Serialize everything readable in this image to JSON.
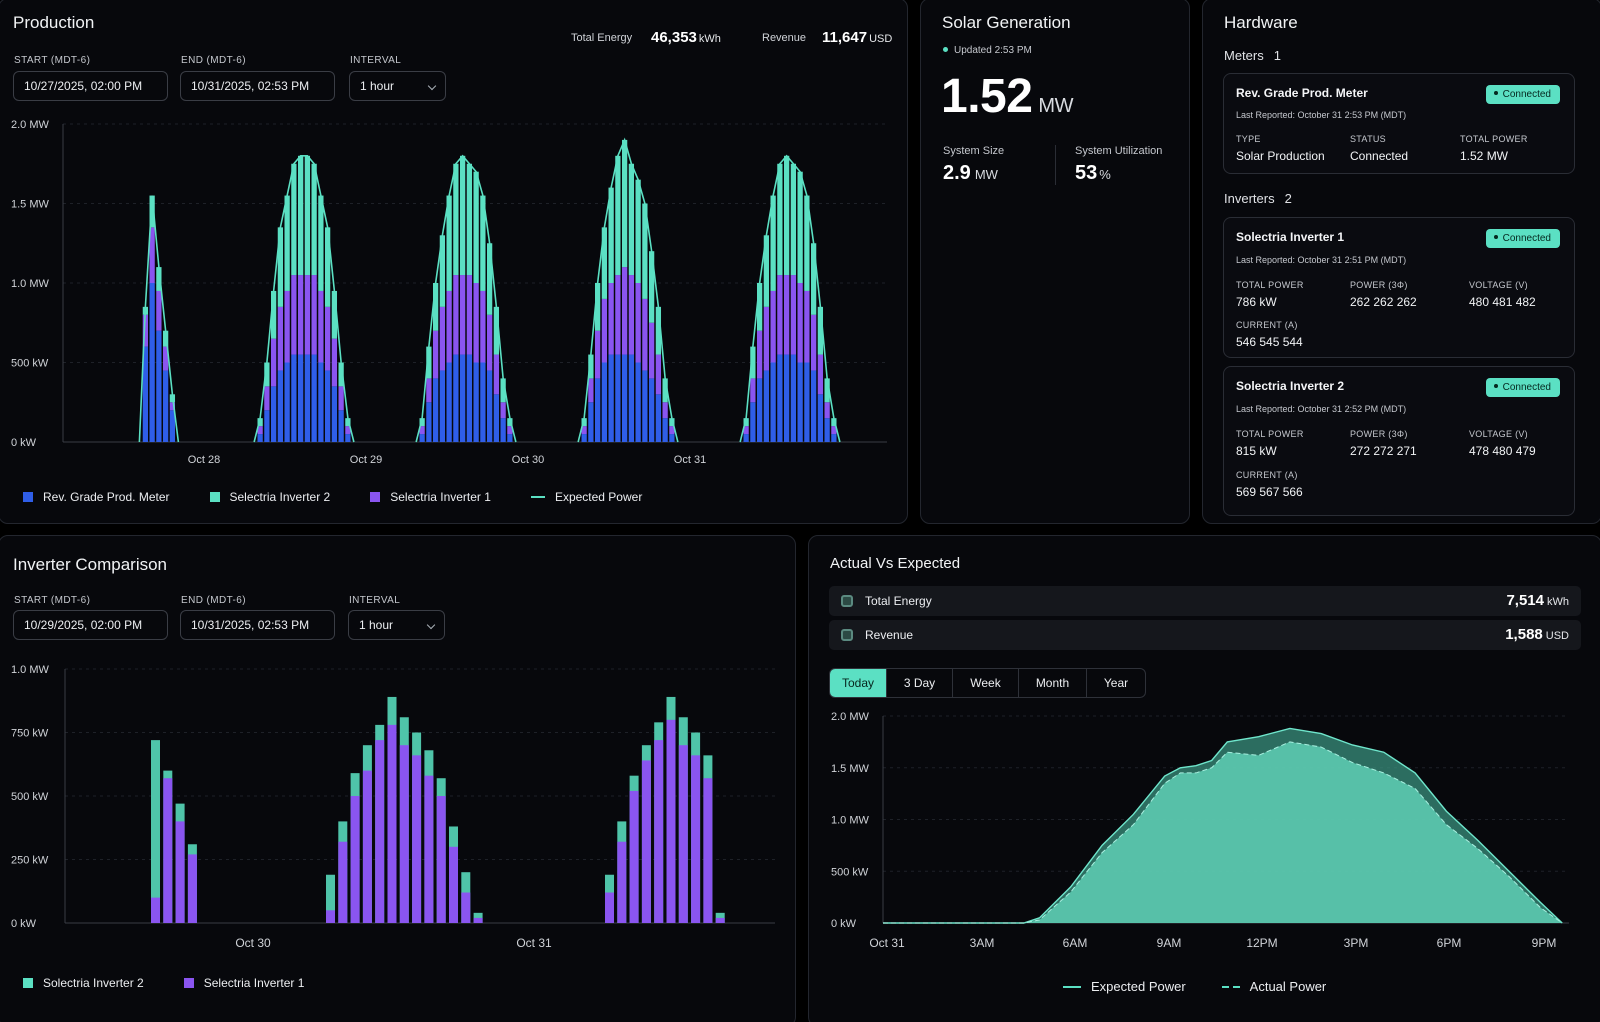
{
  "production": {
    "title": "Production",
    "start_label": "START (MDT-6)",
    "start_value": "10/27/2025, 02:00 PM",
    "end_label": "END (MDT-6)",
    "end_value": "10/31/2025, 02:53 PM",
    "interval_label": "INTERVAL",
    "interval_value": "1 hour",
    "total_energy_label": "Total Energy",
    "total_energy_value": "46,353",
    "total_energy_unit": "kWh",
    "revenue_label": "Revenue",
    "revenue_value": "11,647",
    "revenue_unit": "USD",
    "legend": [
      "Rev. Grade Prod. Meter",
      "Selectria Inverter 2",
      "Selectria Inverter 1",
      "Expected Power"
    ]
  },
  "solar": {
    "title": "Solar Generation",
    "updated": "Updated 2:53 PM",
    "power_value": "1.52",
    "power_unit": "MW",
    "size_label": "System Size",
    "size_value": "2.9",
    "size_unit": "MW",
    "util_label": "System Utilization",
    "util_value": "53",
    "util_unit": "%"
  },
  "hardware": {
    "title": "Hardware",
    "meters_label": "Meters",
    "meters_count": "1",
    "inverters_label": "Inverters",
    "inverters_count": "2",
    "meter": {
      "name": "Rev. Grade Prod. Meter",
      "status_badge": "Connected",
      "reported": "Last Reported: October 31 2:53 PM (MDT)",
      "type_label": "TYPE",
      "type_value": "Solar Production",
      "status_label": "STATUS",
      "status_value": "Connected",
      "power_label": "TOTAL POWER",
      "power_value": "1.52 MW"
    },
    "inverters": [
      {
        "name": "Solectria Inverter 1",
        "status_badge": "Connected",
        "reported": "Last Reported: October 31 2:51 PM (MDT)",
        "total_power_label": "TOTAL POWER",
        "total_power": "786 kW",
        "power3_label": "POWER (3Φ)",
        "power3": "262 262 262",
        "voltage_label": "VOLTAGE (V)",
        "voltage": "480 481 482",
        "current_label": "CURRENT (A)",
        "current": "546 545 544"
      },
      {
        "name": "Solectria Inverter 2",
        "status_badge": "Connected",
        "reported": "Last Reported: October 31 2:52 PM (MDT)",
        "total_power_label": "TOTAL POWER",
        "total_power": "815 kW",
        "power3_label": "POWER (3Φ)",
        "power3": "272 272 271",
        "voltage_label": "VOLTAGE (V)",
        "voltage": "478 480 479",
        "current_label": "CURRENT (A)",
        "current": "569 567 566"
      }
    ]
  },
  "comparison": {
    "title": "Inverter Comparison",
    "start_label": "START (MDT-6)",
    "start_value": "10/29/2025, 02:00 PM",
    "end_label": "END (MDT-6)",
    "end_value": "10/31/2025, 02:53 PM",
    "interval_label": "INTERVAL",
    "interval_value": "1 hour",
    "legend": [
      "Solectria Inverter 2",
      "Selectria Inverter 1"
    ]
  },
  "ave": {
    "title": "Actual Vs Expected",
    "energy_label": "Total Energy",
    "energy_value": "7,514",
    "energy_unit": "kWh",
    "revenue_label": "Revenue",
    "revenue_value": "1,588",
    "revenue_unit": "USD",
    "tabs": [
      "Today",
      "3 Day",
      "Week",
      "Month",
      "Year"
    ],
    "legend": [
      "Expected Power",
      "Actual Power"
    ]
  },
  "colors": {
    "meter": "#2f5ee8",
    "inverter2": "#5be0c3",
    "inverter1": "#8a55f0",
    "expected": "#5be0c3",
    "teal_fill": "#4fc4a9"
  },
  "chart_data": [
    {
      "type": "bar",
      "name": "production",
      "stacked": true,
      "y_ticks": [
        "2.0 MW",
        "1.5 MW",
        "1.0 MW",
        "500 kW",
        "0 kW"
      ],
      "ylim": [
        0,
        2.0
      ],
      "x_ticks": [
        "Oct 28",
        "Oct 29",
        "Oct 30",
        "Oct 31"
      ],
      "days": [
        {
          "start_hour": 13,
          "meter": [
            0.6,
            1.0,
            0.7,
            0.45,
            0.2
          ],
          "inv1": [
            0.2,
            0.35,
            0.25,
            0.15,
            0.05
          ],
          "inv2": [
            0.05,
            0.2,
            0.15,
            0.1,
            0.05
          ]
        },
        {
          "start_hour": 6,
          "meter": [
            0.05,
            0.2,
            0.35,
            0.45,
            0.5,
            0.55,
            0.55,
            0.55,
            0.55,
            0.5,
            0.45,
            0.35,
            0.2,
            0.05
          ],
          "inv1": [
            0.05,
            0.15,
            0.3,
            0.4,
            0.45,
            0.5,
            0.5,
            0.5,
            0.5,
            0.45,
            0.4,
            0.3,
            0.15,
            0.05
          ],
          "inv2": [
            0.05,
            0.15,
            0.3,
            0.5,
            0.6,
            0.7,
            0.75,
            0.75,
            0.7,
            0.6,
            0.5,
            0.3,
            0.15,
            0.05
          ]
        },
        {
          "start_hour": 6,
          "meter": [
            0.05,
            0.25,
            0.4,
            0.45,
            0.5,
            0.55,
            0.55,
            0.55,
            0.5,
            0.5,
            0.45,
            0.3,
            0.15,
            0.05
          ],
          "inv1": [
            0.05,
            0.15,
            0.3,
            0.4,
            0.45,
            0.5,
            0.5,
            0.5,
            0.5,
            0.45,
            0.35,
            0.25,
            0.1,
            0.05
          ],
          "inv2": [
            0.05,
            0.2,
            0.3,
            0.45,
            0.6,
            0.7,
            0.75,
            0.7,
            0.7,
            0.6,
            0.45,
            0.3,
            0.15,
            0.05
          ]
        },
        {
          "start_hour": 6,
          "meter": [
            0.05,
            0.25,
            0.4,
            0.5,
            0.55,
            0.55,
            0.55,
            0.55,
            0.5,
            0.45,
            0.4,
            0.3,
            0.15,
            0.05
          ],
          "inv1": [
            0.05,
            0.15,
            0.3,
            0.4,
            0.45,
            0.5,
            0.55,
            0.5,
            0.5,
            0.45,
            0.35,
            0.25,
            0.1,
            0.05
          ],
          "inv2": [
            0.05,
            0.15,
            0.3,
            0.45,
            0.6,
            0.75,
            0.8,
            0.7,
            0.65,
            0.6,
            0.45,
            0.3,
            0.15,
            0.05
          ]
        },
        {
          "start_hour": 6,
          "meter": [
            0.05,
            0.25,
            0.4,
            0.45,
            0.5,
            0.55,
            0.55,
            0.55,
            0.5,
            0.5,
            0.45,
            0.3,
            0.15,
            0.05
          ],
          "inv1": [
            0.05,
            0.15,
            0.3,
            0.4,
            0.45,
            0.5,
            0.5,
            0.5,
            0.5,
            0.45,
            0.35,
            0.25,
            0.1,
            0.05
          ],
          "inv2": [
            0.05,
            0.2,
            0.3,
            0.45,
            0.6,
            0.7,
            0.75,
            0.7,
            0.7,
            0.6,
            0.45,
            0.3,
            0.15,
            0.05
          ]
        }
      ]
    },
    {
      "type": "bar",
      "name": "inverter-comparison",
      "y_ticks": [
        "1.0 MW",
        "750 kW",
        "500 kW",
        "250 kW",
        "0 kW"
      ],
      "ylim": [
        0,
        1.0
      ],
      "x_ticks": [
        "Oct 30",
        "Oct 31"
      ],
      "groups": [
        {
          "inv2": [
            0.72,
            0.6,
            0.47,
            0.31
          ],
          "inv1": [
            0.1,
            0.57,
            0.4,
            0.27
          ]
        },
        {
          "inv2": [
            0.19,
            0.4,
            0.59,
            0.7,
            0.78,
            0.89,
            0.81,
            0.75,
            0.68,
            0.57,
            0.38,
            0.2,
            0.04
          ],
          "inv1": [
            0.05,
            0.32,
            0.5,
            0.6,
            0.72,
            0.78,
            0.7,
            0.66,
            0.58,
            0.5,
            0.3,
            0.12,
            0.02
          ]
        },
        {
          "inv2": [
            0.19,
            0.4,
            0.58,
            0.7,
            0.79,
            0.89,
            0.81,
            0.75,
            0.66,
            0.04
          ],
          "inv1": [
            0.12,
            0.32,
            0.52,
            0.64,
            0.72,
            0.8,
            0.7,
            0.66,
            0.57,
            0.02
          ]
        }
      ]
    },
    {
      "type": "area",
      "name": "actual-vs-expected",
      "y_ticks": [
        "2.0 MW",
        "1.5 MW",
        "1.0 MW",
        "500 kW",
        "0 kW"
      ],
      "ylim": [
        0,
        2.0
      ],
      "x_ticks": [
        "Oct 31",
        "3AM",
        "6AM",
        "9AM",
        "12PM",
        "3PM",
        "6PM",
        "9PM"
      ],
      "x_hours": [
        0,
        4.5,
        5,
        6,
        7,
        8,
        9,
        9.5,
        10,
        10.5,
        11,
        12,
        13,
        14,
        15,
        16,
        17,
        18,
        19,
        20,
        21,
        21.7
      ],
      "expected": [
        0,
        0,
        0.05,
        0.35,
        0.75,
        1.05,
        1.42,
        1.5,
        1.52,
        1.57,
        1.75,
        1.8,
        1.88,
        1.83,
        1.72,
        1.65,
        1.45,
        1.08,
        0.8,
        0.5,
        0.2,
        0
      ],
      "actual": [
        0,
        0,
        0.03,
        0.3,
        0.68,
        0.95,
        1.35,
        1.45,
        1.45,
        1.5,
        1.65,
        1.62,
        1.75,
        1.7,
        1.55,
        1.45,
        1.3,
        0.95,
        0.72,
        0.45,
        0.15,
        0
      ]
    }
  ]
}
